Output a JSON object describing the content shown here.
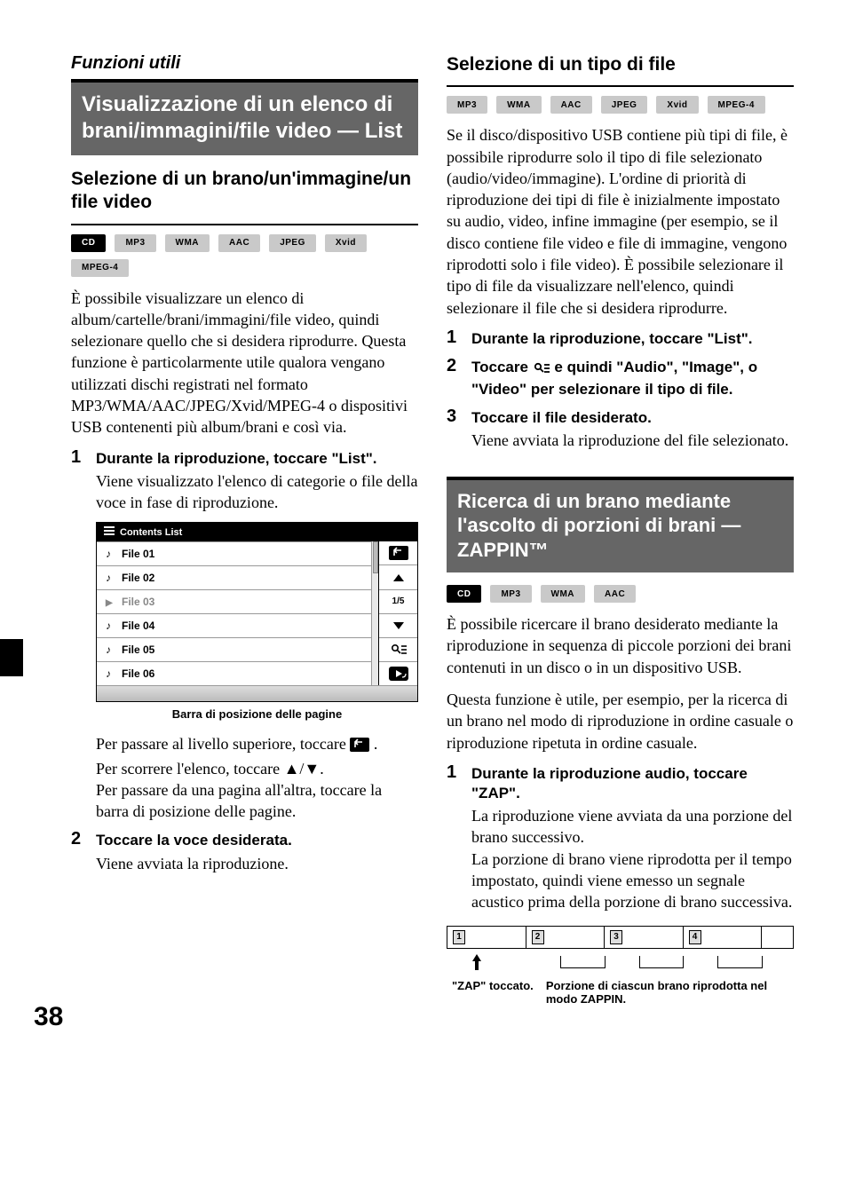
{
  "page_number": "38",
  "left": {
    "super": "Funzioni utili",
    "title": "Visualizzazione di un elenco di brani/immagini/file video — List",
    "sub_h": "Selezione di un brano/un'immagine/un file video",
    "badges": [
      {
        "label": "CD",
        "variant": "dark"
      },
      {
        "label": "MP3",
        "variant": "light"
      },
      {
        "label": "WMA",
        "variant": "light"
      },
      {
        "label": "AAC",
        "variant": "light"
      },
      {
        "label": "JPEG",
        "variant": "light"
      },
      {
        "label": "Xvid",
        "variant": "light"
      },
      {
        "label": "MPEG-4",
        "variant": "light"
      }
    ],
    "intro": "È possibile visualizzare un elenco di album/cartelle/brani/immagini/file video, quindi selezionare quello che si desidera riprodurre. Questa funzione è particolarmente utile qualora vengano utilizzati dischi registrati nel formato MP3/WMA/AAC/JPEG/Xvid/MPEG-4 o dispositivi USB contenenti più album/brani e così via.",
    "steps": [
      {
        "head": "Durante la riproduzione, toccare \"List\".",
        "body": "Viene visualizzato l'elenco di categorie o file della voce in fase di riproduzione."
      },
      {
        "head": "Toccare la voce desiderata.",
        "body": "Viene avviata la riproduzione."
      }
    ],
    "contents_list": {
      "header": "Contents List",
      "rows": [
        {
          "label": "File 01",
          "current": false
        },
        {
          "label": "File 02",
          "current": false
        },
        {
          "label": "File 03",
          "current": true
        },
        {
          "label": "File 04",
          "current": false
        },
        {
          "label": "File 05",
          "current": false
        },
        {
          "label": "File 06",
          "current": false
        }
      ],
      "page_indicator": "1/5"
    },
    "caption": "Barra di posizione delle pagine",
    "after_list_1": "Per passare al livello superiore, toccare ",
    "after_list_1b": ".",
    "after_list_2": "Per scorrere l'elenco, toccare ▲/▼.",
    "after_list_3": "Per passare da una pagina all'altra, toccare la barra di posizione delle pagine."
  },
  "right": {
    "sub_h": "Selezione di un tipo di file",
    "badges": [
      {
        "label": "MP3",
        "variant": "light"
      },
      {
        "label": "WMA",
        "variant": "light"
      },
      {
        "label": "AAC",
        "variant": "light"
      },
      {
        "label": "JPEG",
        "variant": "light"
      },
      {
        "label": "Xvid",
        "variant": "light"
      },
      {
        "label": "MPEG-4",
        "variant": "light"
      }
    ],
    "intro": "Se il disco/dispositivo USB contiene più tipi di file, è possibile riprodurre solo il tipo di file selezionato (audio/video/immagine). L'ordine di priorità di riproduzione dei tipi di file è inizialmente impostato su audio, video, infine immagine (per esempio, se il disco contiene file video e file di immagine, vengono riprodotti solo i file video). È possibile selezionare il tipo di file da visualizzare nell'elenco, quindi selezionare il file che si desidera riprodurre.",
    "steps": [
      {
        "head": "Durante la riproduzione, toccare \"List\"."
      },
      {
        "head_pre": "Toccare ",
        "head_post": " e quindi \"Audio\", \"Image\", o \"Video\" per selezionare il tipo di file."
      },
      {
        "head": "Toccare il file desiderato.",
        "body": "Viene avviata la riproduzione del file selezionato."
      }
    ],
    "zappin": {
      "title": "Ricerca di un brano mediante l'ascolto di porzioni di brani — ZAPPIN™",
      "badges": [
        {
          "label": "CD",
          "variant": "dark"
        },
        {
          "label": "MP3",
          "variant": "light"
        },
        {
          "label": "WMA",
          "variant": "light"
        },
        {
          "label": "AAC",
          "variant": "light"
        }
      ],
      "intro1": "È possibile ricercare il brano desiderato mediante la riproduzione in sequenza di piccole porzioni dei brani contenuti in un disco o in un dispositivo USB.",
      "intro2": "Questa funzione è utile, per esempio, per la ricerca di un brano nel modo di riproduzione in ordine casuale o riproduzione ripetuta in ordine casuale.",
      "step_head": "Durante la riproduzione audio, toccare \"ZAP\".",
      "step_body": "La riproduzione viene avviata da una porzione del brano successivo.\nLa porzione di brano viene riprodotta per il tempo impostato, quindi viene emesso un segnale acustico prima della porzione di brano successiva.",
      "tracks": [
        "1",
        "2",
        "3",
        "4"
      ],
      "label_left": "\"ZAP\" toccato.",
      "label_right": "Porzione di ciascun brano riprodotta nel modo ZAPPIN."
    }
  }
}
